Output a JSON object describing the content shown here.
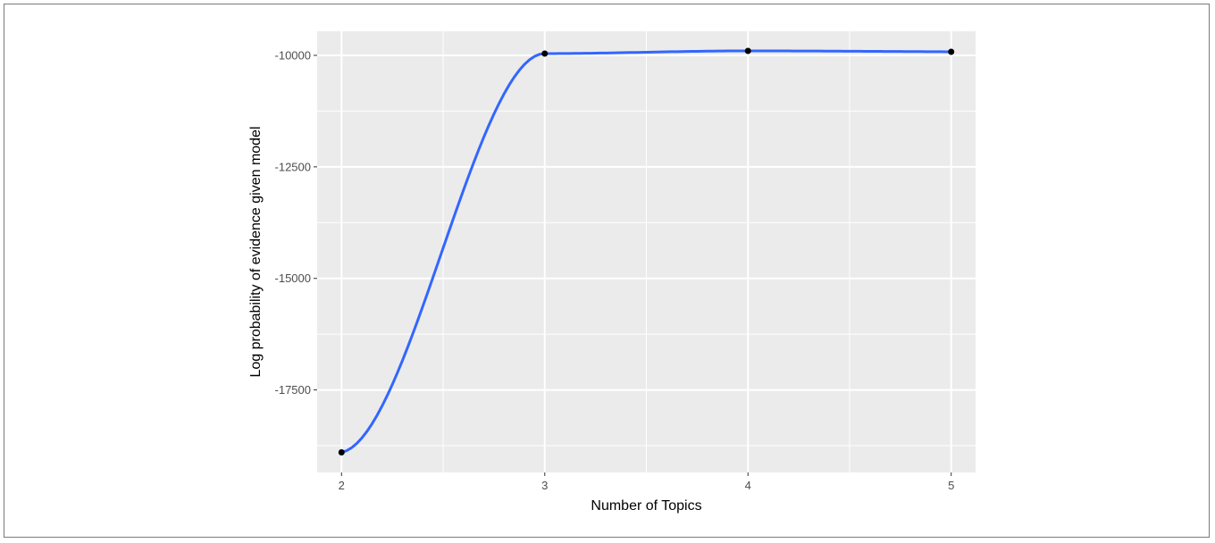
{
  "chart_data": {
    "type": "line",
    "title": "",
    "xlabel": "Number of Topics",
    "ylabel": "Log probability of evidence given model",
    "x": [
      2,
      3,
      4,
      5
    ],
    "y": [
      -18900,
      -9960,
      -9900,
      -9920
    ],
    "xlim": [
      1.88,
      5.12
    ],
    "ylim": [
      -19350,
      -9460
    ],
    "x_ticks": [
      2,
      3,
      4,
      5
    ],
    "x_tick_labels": [
      "2",
      "3",
      "4",
      "5"
    ],
    "y_ticks": [
      -17500,
      -15000,
      -12500,
      -10000
    ],
    "y_tick_labels": [
      "-17500",
      "-15000",
      "-12500",
      "-10000"
    ],
    "grid": true,
    "colors": {
      "panel_background": "#ebebeb",
      "grid_line": "#ffffff",
      "curve": "#3366ff",
      "points": "#000000"
    }
  }
}
